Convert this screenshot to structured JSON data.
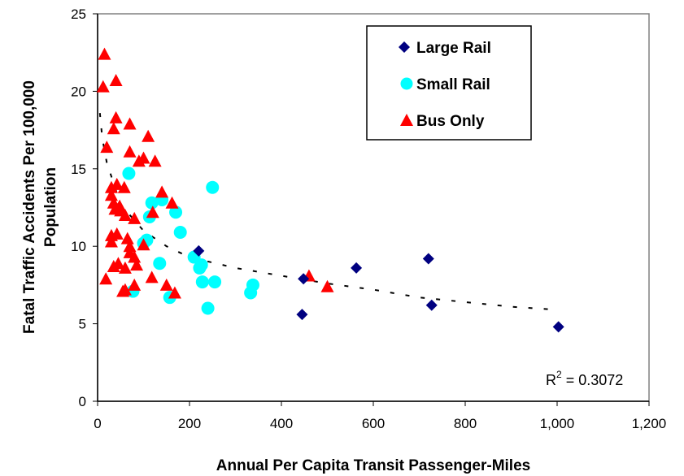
{
  "chart_data": {
    "type": "scatter",
    "xlabel": "Annual Per Capita Transit Passenger-Miles",
    "ylabel_line1": "Fatal Traffic Accidents Per 100,000",
    "ylabel_line2": "Population",
    "xlim": [
      0,
      1200
    ],
    "ylim": [
      0,
      25
    ],
    "x_ticks": [
      0,
      200,
      400,
      600,
      800,
      1000,
      1200
    ],
    "x_tick_labels": [
      "0",
      "200",
      "400",
      "600",
      "800",
      "1,000",
      "1,200"
    ],
    "y_ticks": [
      0,
      5,
      10,
      15,
      20,
      25
    ],
    "y_tick_labels": [
      "0",
      "5",
      "10",
      "15",
      "20",
      "25"
    ],
    "grid": false,
    "legend_position": "top-right",
    "series": [
      {
        "name": "Large Rail",
        "marker": "diamond",
        "color": "#000080",
        "points": [
          [
            220,
            9.7
          ],
          [
            445,
            5.6
          ],
          [
            448,
            7.9
          ],
          [
            563,
            8.6
          ],
          [
            720,
            9.2
          ],
          [
            727,
            6.2
          ],
          [
            1003,
            4.8
          ]
        ]
      },
      {
        "name": "Small Rail",
        "marker": "circle",
        "color": "#00FFFF",
        "points": [
          [
            68,
            14.7
          ],
          [
            77,
            7.1
          ],
          [
            100,
            10.2
          ],
          [
            107,
            10.4
          ],
          [
            113,
            11.9
          ],
          [
            118,
            12.8
          ],
          [
            135,
            8.9
          ],
          [
            140,
            13.0
          ],
          [
            157,
            6.7
          ],
          [
            170,
            12.2
          ],
          [
            180,
            10.9
          ],
          [
            210,
            9.3
          ],
          [
            222,
            8.6
          ],
          [
            226,
            8.8
          ],
          [
            228,
            7.7
          ],
          [
            240,
            6.0
          ],
          [
            250,
            13.8
          ],
          [
            255,
            7.7
          ],
          [
            333,
            7.0
          ],
          [
            338,
            7.5
          ]
        ]
      },
      {
        "name": "Bus Only",
        "marker": "triangle",
        "color": "#FF0000",
        "points": [
          [
            15,
            22.4
          ],
          [
            12,
            20.3
          ],
          [
            40,
            20.7
          ],
          [
            40,
            18.3
          ],
          [
            35,
            17.6
          ],
          [
            70,
            17.9
          ],
          [
            110,
            17.1
          ],
          [
            20,
            16.4
          ],
          [
            70,
            16.1
          ],
          [
            90,
            15.5
          ],
          [
            100,
            15.7
          ],
          [
            125,
            15.5
          ],
          [
            30,
            13.8
          ],
          [
            42,
            14.0
          ],
          [
            58,
            13.8
          ],
          [
            30,
            13.3
          ],
          [
            35,
            12.8
          ],
          [
            48,
            12.6
          ],
          [
            140,
            13.5
          ],
          [
            162,
            12.8
          ],
          [
            38,
            12.4
          ],
          [
            50,
            12.3
          ],
          [
            60,
            12.0
          ],
          [
            120,
            12.2
          ],
          [
            80,
            11.8
          ],
          [
            65,
            10.5
          ],
          [
            30,
            10.7
          ],
          [
            42,
            10.8
          ],
          [
            30,
            10.3
          ],
          [
            70,
            10.0
          ],
          [
            100,
            10.1
          ],
          [
            70,
            9.6
          ],
          [
            80,
            9.3
          ],
          [
            45,
            8.9
          ],
          [
            35,
            8.7
          ],
          [
            60,
            8.6
          ],
          [
            85,
            8.8
          ],
          [
            18,
            7.9
          ],
          [
            55,
            7.1
          ],
          [
            60,
            7.2
          ],
          [
            80,
            7.5
          ],
          [
            118,
            8.0
          ],
          [
            150,
            7.5
          ],
          [
            168,
            7.0
          ],
          [
            460,
            8.1
          ],
          [
            500,
            7.4
          ]
        ]
      }
    ],
    "trendline": {
      "type": "power",
      "style": "dashed",
      "color": "#000000",
      "points": [
        [
          5,
          18.6
        ],
        [
          10,
          17.0
        ],
        [
          20,
          15.4
        ],
        [
          50,
          12.7
        ],
        [
          100,
          11.0
        ],
        [
          150,
          10.0
        ],
        [
          200,
          9.3
        ],
        [
          300,
          8.6
        ],
        [
          400,
          8.1
        ],
        [
          500,
          7.6
        ],
        [
          600,
          7.2
        ],
        [
          700,
          6.7
        ],
        [
          800,
          6.4
        ],
        [
          900,
          6.1
        ],
        [
          1000,
          5.9
        ]
      ]
    },
    "annotation": {
      "r2_label": "R",
      "r2_exponent": "2",
      "r2_value": " = 0.3072"
    }
  }
}
